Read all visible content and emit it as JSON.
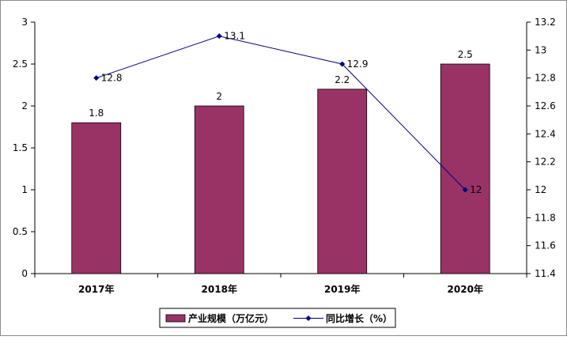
{
  "chart_data": {
    "type": "bar",
    "categories": [
      "2017年",
      "2018年",
      "2019年",
      "2020年"
    ],
    "series": [
      {
        "name": "产业规模（万亿元）",
        "type": "bar",
        "axis": "left",
        "values": [
          1.8,
          2,
          2.2,
          2.5
        ],
        "labels": [
          "1.8",
          "2",
          "2.2",
          "2.5"
        ]
      },
      {
        "name": "同比增长（%）",
        "type": "line",
        "axis": "right",
        "values": [
          12.8,
          13.1,
          12.9,
          12
        ],
        "labels": [
          "12.8",
          "13.1",
          "12.9",
          "12"
        ]
      }
    ],
    "y_left": {
      "min": 0,
      "max": 3,
      "ticks": [
        "0",
        "0.5",
        "1",
        "1.5",
        "2",
        "2.5",
        "3"
      ]
    },
    "y_right": {
      "min": 11.4,
      "max": 13.2,
      "ticks": [
        "11.4",
        "11.6",
        "11.8",
        "12",
        "12.2",
        "12.4",
        "12.6",
        "12.8",
        "13",
        "13.2"
      ]
    },
    "grid": false,
    "legend_position": "bottom",
    "colors": {
      "bar": "#993366",
      "bar_edge": "#000000",
      "line": "#000080",
      "axis": "#000000"
    }
  }
}
